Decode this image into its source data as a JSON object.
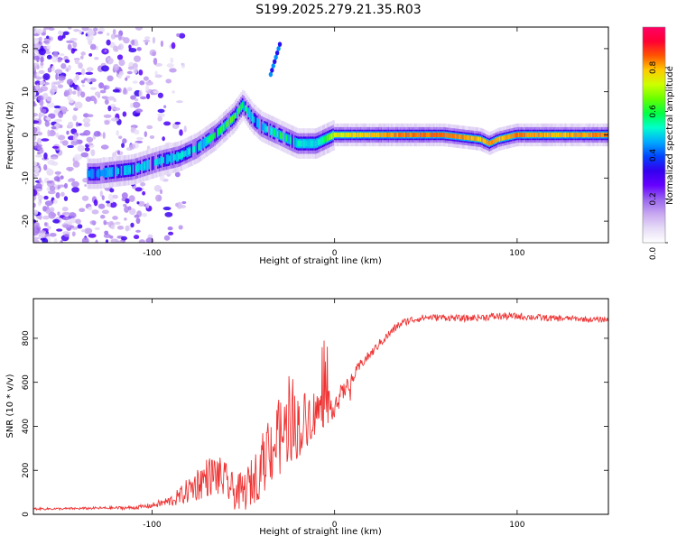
{
  "title": "S199.2025.279.21.35.R03",
  "chart_data": [
    {
      "type": "heatmap",
      "title": "S199.2025.279.21.35.R03",
      "xlabel": "Height of straight line (km)",
      "ylabel": "Frequency (Hz)",
      "xlim": [
        -165,
        150
      ],
      "ylim": [
        -25,
        25
      ],
      "xticks": [
        -100,
        0,
        100
      ],
      "yticks": [
        -20,
        -10,
        0,
        10,
        20
      ],
      "colorbar": {
        "label": "Normalized spectral amplitude",
        "range": [
          0,
          1
        ],
        "ticks": [
          "0.0",
          "0.2",
          "0.4",
          "0.6",
          "0.8"
        ],
        "colors": [
          "#ffffff",
          "#e6dcf6",
          "#c8a8f0",
          "#9966ee",
          "#6600ff",
          "#3300ee",
          "#0044ff",
          "#00aaff",
          "#00ffcc",
          "#00ff44",
          "#66ff00",
          "#ccff00",
          "#ffcc00",
          "#ff5500",
          "#ff0033",
          "#ff0066"
        ]
      },
      "signal_ridge": {
        "x": [
          -130,
          -110,
          -95,
          -85,
          -75,
          -65,
          -55,
          -50,
          -45,
          -40,
          -35,
          -30,
          -25,
          -20,
          -15,
          -10,
          -5,
          0,
          20,
          40,
          60,
          80,
          85,
          90,
          100,
          120,
          150
        ],
        "freq": [
          -9,
          -8,
          -6,
          -5,
          -3,
          0,
          4,
          7,
          4,
          2,
          1,
          0,
          -1,
          -2,
          -2,
          -2,
          -1,
          0,
          0,
          0,
          0,
          -1,
          -2,
          -1,
          0,
          0,
          0
        ],
        "amplitude": [
          0.45,
          0.5,
          0.5,
          0.5,
          0.55,
          0.6,
          0.65,
          0.6,
          0.5,
          0.45,
          0.55,
          0.6,
          0.6,
          0.55,
          0.5,
          0.5,
          0.6,
          0.75,
          0.8,
          0.85,
          0.85,
          0.8,
          0.85,
          0.8,
          0.85,
          0.8,
          0.85
        ]
      },
      "artifact": {
        "x": [
          -35,
          -30
        ],
        "freq": [
          14,
          21
        ],
        "amplitude": 0.45
      }
    },
    {
      "type": "line",
      "xlabel": "Height of straight line (km)",
      "ylabel": "SNR (10 * v/v)",
      "xlim": [
        -165,
        150
      ],
      "ylim": [
        0,
        980
      ],
      "xticks": [
        -100,
        0,
        100
      ],
      "yticks": [
        0,
        200,
        400,
        600,
        800
      ],
      "series": [
        {
          "name": "SNR",
          "color": "#ee3333",
          "x": [
            -165,
            -150,
            -130,
            -110,
            -100,
            -90,
            -85,
            -80,
            -75,
            -70,
            -65,
            -60,
            -55,
            -50,
            -45,
            -40,
            -35,
            -30,
            -25,
            -20,
            -15,
            -10,
            -5,
            0,
            5,
            10,
            15,
            20,
            25,
            30,
            35,
            40,
            50,
            60,
            70,
            80,
            90,
            100,
            110,
            120,
            130,
            140,
            150
          ],
          "y": [
            25,
            25,
            28,
            30,
            40,
            60,
            80,
            110,
            140,
            170,
            180,
            150,
            100,
            100,
            150,
            220,
            300,
            350,
            400,
            400,
            440,
            470,
            480,
            500,
            560,
            620,
            690,
            730,
            780,
            820,
            860,
            880,
            895,
            895,
            890,
            895,
            900,
            900,
            895,
            890,
            890,
            885,
            885
          ],
          "noise": [
            5,
            5,
            6,
            8,
            12,
            25,
            40,
            60,
            80,
            90,
            95,
            90,
            80,
            90,
            110,
            140,
            170,
            180,
            170,
            150,
            130,
            100,
            80,
            60,
            40,
            30,
            25,
            20,
            20,
            20,
            18,
            18,
            15,
            15,
            15,
            15,
            18,
            15,
            15,
            15,
            12,
            12,
            12
          ]
        }
      ]
    }
  ]
}
